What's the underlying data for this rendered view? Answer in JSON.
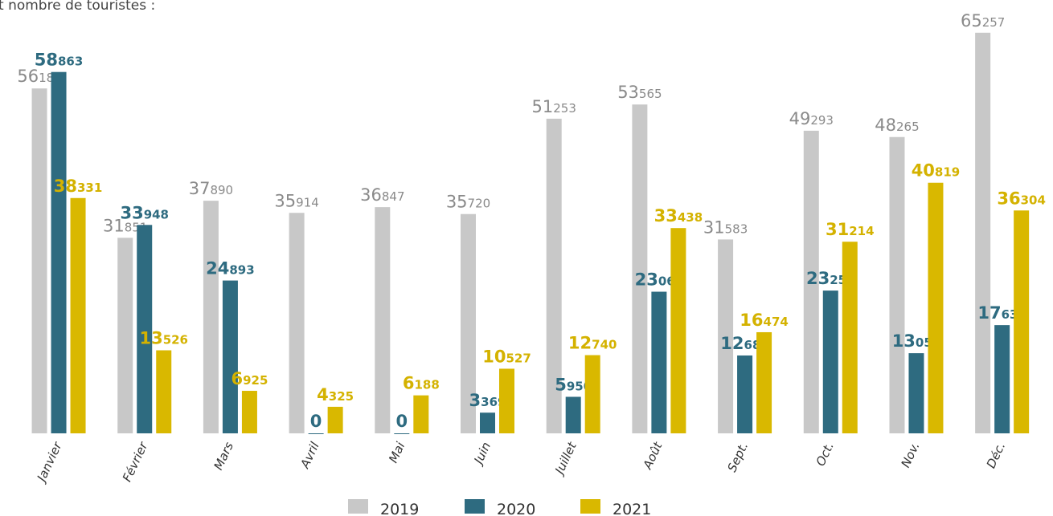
{
  "chart_data": {
    "type": "bar",
    "title": "t nombre de touristes :",
    "categories": [
      "Janvier",
      "Février",
      "Mars",
      "Avril",
      "Mai",
      "Juin",
      "Juillet",
      "Août",
      "Sept.",
      "Oct.",
      "Nov.",
      "Déc."
    ],
    "series": [
      {
        "name": "2019",
        "color": "#c8c8c8",
        "label_color": "#8a8a8a",
        "values": [
          56182,
          31851,
          37890,
          35914,
          36847,
          35720,
          51253,
          53565,
          31583,
          49293,
          48265,
          65257
        ],
        "value_labels": [
          "56 182",
          "31 851",
          "37 890",
          "35 914",
          "36 847",
          "35 720",
          "51 253",
          "53 565",
          "31 583",
          "49 293",
          "48 265",
          "65 257"
        ]
      },
      {
        "name": "2020",
        "color": "#2e6b80",
        "label_color": "#2e6b80",
        "values": [
          58863,
          33948,
          24893,
          0,
          0,
          3369,
          5950,
          23069,
          12684,
          23256,
          13056,
          17630
        ],
        "value_labels": [
          "58 863",
          "33 948",
          "24 893",
          "0",
          "0",
          "3 369",
          "5 950",
          "23 069",
          "12 684",
          "23 256",
          "13 056",
          "17 630"
        ]
      },
      {
        "name": "2021",
        "color": "#d9b800",
        "label_color": "#d4b200",
        "values": [
          38331,
          13526,
          6925,
          4325,
          6188,
          10527,
          12740,
          33438,
          16474,
          31214,
          40819,
          36304
        ],
        "value_labels": [
          "38 331",
          "13 526",
          "6 925",
          "4 325",
          "6 188",
          "10 527",
          "12 740",
          "33 438",
          "16 474",
          "31 214",
          "40 819",
          "36 304"
        ]
      }
    ],
    "ylim": [
      0,
      70000
    ]
  }
}
